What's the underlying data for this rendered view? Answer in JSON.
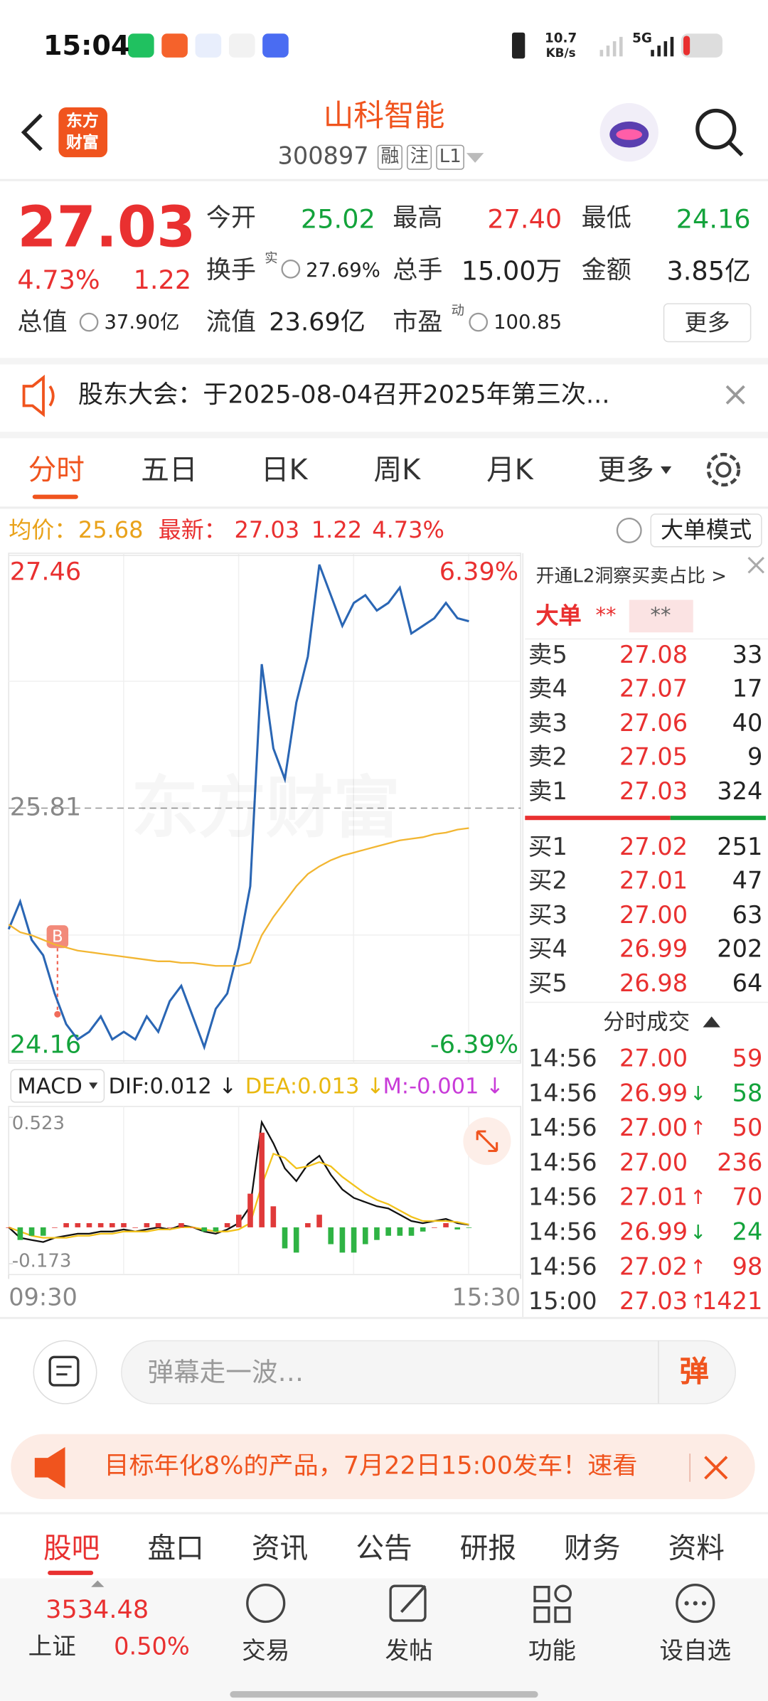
{
  "status_bar": {
    "time": "15:04",
    "speed": "10.7",
    "speed_unit": "KB/s",
    "network": "5G"
  },
  "header": {
    "logo_top": "东方",
    "logo_bottom": "财富",
    "title": "山科智能",
    "code": "300897",
    "tags": [
      "融",
      "注",
      "L1"
    ]
  },
  "quote": {
    "price": "27.03",
    "change_pct": "4.73%",
    "change": "1.22",
    "fields": [
      {
        "label": "今开",
        "value": "25.02",
        "color": "#13a33b"
      },
      {
        "label": "最高",
        "value": "27.40",
        "color": "#e93030"
      },
      {
        "label": "最低",
        "value": "24.16",
        "color": "#13a33b"
      },
      {
        "label": "换手",
        "sup": "实",
        "value": "27.69%",
        "color": "#222222"
      },
      {
        "label": "总手",
        "value": "15.00万",
        "color": "#222222"
      },
      {
        "label": "金额",
        "value": "3.85亿",
        "color": "#222222"
      },
      {
        "label": "总值",
        "value": "37.90亿",
        "color": "#222222"
      },
      {
        "label": "流值",
        "value": "23.69亿",
        "color": "#222222"
      },
      {
        "label": "市盈",
        "sup": "动",
        "value": "100.85",
        "color": "#222222"
      }
    ],
    "more": "更多"
  },
  "notice": {
    "text": "股东大会：于2025-08-04召开2025年第三次..."
  },
  "tabs": {
    "items": [
      "分时",
      "五日",
      "日K",
      "周K",
      "月K",
      "更多"
    ],
    "active": 0
  },
  "summary": {
    "avg_label": "均价：",
    "avg": "25.68",
    "latest_label": "最新：",
    "latest": "27.03",
    "change": "1.22",
    "change_pct": "4.73%",
    "mode": "大单模式"
  },
  "watermark": "东方财富",
  "chart_data": [
    {
      "type": "line",
      "x": [
        0,
        6,
        12,
        18,
        24,
        30,
        36,
        42,
        48,
        54,
        60,
        66,
        72,
        78,
        84,
        90,
        96,
        102,
        108,
        114,
        120,
        126,
        132,
        138,
        144,
        150,
        156,
        162,
        168,
        174,
        180,
        186,
        192,
        198,
        204,
        210,
        216,
        222,
        228,
        234,
        240
      ],
      "xlim": [
        0,
        267
      ],
      "ylim": [
        24.16,
        27.46
      ],
      "yticks": [
        24.16,
        25.81,
        27.46
      ],
      "y2lim": [
        -6.39,
        6.39
      ],
      "y2ticks": [
        {
          "value": -6.39,
          "label": "-6.39%"
        },
        {
          "value": 6.39,
          "label": "6.39%"
        }
      ],
      "series": [
        {
          "color": "#2a66b4",
          "values": [
            25.02,
            25.2,
            24.95,
            24.85,
            24.6,
            24.4,
            24.3,
            24.35,
            24.45,
            24.3,
            24.35,
            24.3,
            24.45,
            24.35,
            24.55,
            24.65,
            24.45,
            24.25,
            24.5,
            24.6,
            24.9,
            25.3,
            26.75,
            26.2,
            26.0,
            26.5,
            26.8,
            27.4,
            27.2,
            27.0,
            27.15,
            27.2,
            27.1,
            27.15,
            27.25,
            26.95,
            27.0,
            27.05,
            27.15,
            27.05,
            27.03
          ]
        },
        {
          "color": "#f2b632",
          "values": [
            25.05,
            25.0,
            24.98,
            24.95,
            24.92,
            24.9,
            24.88,
            24.87,
            24.86,
            24.85,
            24.84,
            24.83,
            24.82,
            24.81,
            24.81,
            24.8,
            24.8,
            24.79,
            24.78,
            24.78,
            24.78,
            24.8,
            24.98,
            25.1,
            25.2,
            25.3,
            25.38,
            25.43,
            25.47,
            25.5,
            25.52,
            25.54,
            25.56,
            25.58,
            25.6,
            25.61,
            25.62,
            25.64,
            25.65,
            25.67,
            25.68
          ]
        }
      ]
    },
    {
      "type": "macd",
      "x": [
        0,
        6,
        12,
        18,
        24,
        30,
        36,
        42,
        48,
        54,
        60,
        66,
        72,
        78,
        84,
        90,
        96,
        102,
        108,
        114,
        120,
        126,
        132,
        138,
        144,
        150,
        156,
        162,
        168,
        174,
        180,
        186,
        192,
        198,
        204,
        210,
        216,
        222,
        228,
        234,
        240
      ],
      "xlim": [
        0,
        267
      ],
      "ylim": [
        -0.173,
        0.523
      ],
      "yticks": [
        -0.173,
        0.523
      ],
      "xticks": [
        {
          "value": 0,
          "label": "09:30"
        },
        {
          "value": 267,
          "label": "15:30"
        }
      ],
      "positive_color": "#e03a3a",
      "negative_color": "#2fb344",
      "series": [
        {
          "type": "line",
          "color": "#111111",
          "values": [
            0.0,
            -0.05,
            -0.06,
            -0.07,
            -0.05,
            -0.04,
            -0.03,
            -0.03,
            -0.02,
            -0.02,
            -0.01,
            -0.02,
            -0.01,
            0.0,
            -0.01,
            0.01,
            0.0,
            -0.02,
            -0.03,
            -0.01,
            0.02,
            0.1,
            0.5,
            0.4,
            0.28,
            0.22,
            0.3,
            0.34,
            0.25,
            0.18,
            0.14,
            0.12,
            0.1,
            0.09,
            0.06,
            0.03,
            0.02,
            0.03,
            0.04,
            0.02,
            0.012
          ]
        },
        {
          "type": "line",
          "color": "#f2c21a",
          "values": [
            0.0,
            -0.02,
            -0.04,
            -0.05,
            -0.05,
            -0.05,
            -0.04,
            -0.04,
            -0.03,
            -0.03,
            -0.02,
            -0.02,
            -0.02,
            -0.01,
            -0.01,
            0.0,
            0.0,
            -0.01,
            -0.02,
            -0.02,
            -0.01,
            0.02,
            0.2,
            0.35,
            0.33,
            0.28,
            0.29,
            0.31,
            0.29,
            0.24,
            0.2,
            0.16,
            0.13,
            0.11,
            0.08,
            0.05,
            0.03,
            0.03,
            0.03,
            0.025,
            0.013
          ]
        },
        {
          "type": "bar",
          "values": [
            0,
            -0.06,
            -0.04,
            -0.04,
            0,
            0.02,
            0.02,
            0.02,
            0.02,
            0.02,
            0.02,
            0,
            0.02,
            0.02,
            0,
            0.02,
            0,
            -0.02,
            -0.02,
            0.02,
            0.06,
            0.16,
            0.45,
            0.1,
            -0.1,
            -0.12,
            0.02,
            0.06,
            -0.08,
            -0.12,
            -0.12,
            -0.08,
            -0.06,
            -0.04,
            -0.04,
            -0.04,
            -0.02,
            0,
            0.02,
            -0.01,
            -0.001
          ]
        }
      ]
    }
  ],
  "macd_header": {
    "indicator": "MACD",
    "dif": "DIF:0.012 ↓",
    "dea": "DEA:0.013 ↓",
    "m": "M:-0.001 ↓"
  },
  "order_book": {
    "promo": "开通L2洞察买卖占比 >",
    "big_order": "大单",
    "big_value": "**",
    "big_box": "**",
    "asks": [
      {
        "label": "卖5",
        "price": "27.08",
        "volume": "33"
      },
      {
        "label": "卖4",
        "price": "27.07",
        "volume": "17"
      },
      {
        "label": "卖3",
        "price": "27.06",
        "volume": "40"
      },
      {
        "label": "卖2",
        "price": "27.05",
        "volume": "9"
      },
      {
        "label": "卖1",
        "price": "27.03",
        "volume": "324"
      }
    ],
    "bids": [
      {
        "label": "买1",
        "price": "27.02",
        "volume": "251"
      },
      {
        "label": "买2",
        "price": "27.01",
        "volume": "47"
      },
      {
        "label": "买3",
        "price": "27.00",
        "volume": "63"
      },
      {
        "label": "买4",
        "price": "26.99",
        "volume": "202"
      },
      {
        "label": "买5",
        "price": "26.98",
        "volume": "64"
      }
    ]
  },
  "trades": {
    "title": "分时成交",
    "rows": [
      {
        "time": "14:56",
        "price": "27.00",
        "volume": "59",
        "color": "#e93030"
      },
      {
        "time": "14:56",
        "price": "26.99",
        "arrow": "↓",
        "volume": "58",
        "color": "#13a33b"
      },
      {
        "time": "14:56",
        "price": "27.00",
        "arrow": "↑",
        "volume": "50",
        "color": "#e93030"
      },
      {
        "time": "14:56",
        "price": "27.00",
        "volume": "236",
        "color": "#e93030"
      },
      {
        "time": "14:56",
        "price": "27.01",
        "arrow": "↑",
        "volume": "70",
        "color": "#e93030"
      },
      {
        "time": "14:56",
        "price": "26.99",
        "arrow": "↓",
        "volume": "24",
        "color": "#13a33b"
      },
      {
        "time": "14:56",
        "price": "27.02",
        "arrow": "↑",
        "volume": "98",
        "color": "#e93030"
      },
      {
        "time": "15:00",
        "price": "27.03",
        "arrow": "↑",
        "volume": "1421",
        "color": "#e93030"
      }
    ]
  },
  "comment": {
    "placeholder": "弹幕走一波…",
    "button": "弹"
  },
  "promo": {
    "text": "目标年化8%的产品，7月22日15:00发车！速看"
  },
  "bottom_tabs": {
    "items": [
      "股吧",
      "盘口",
      "资讯",
      "公告",
      "研报",
      "财务",
      "资料"
    ],
    "active": 0
  },
  "nav": {
    "index_value": "3534.48",
    "index_name": "上证",
    "index_change": "0.50%",
    "items": [
      "交易",
      "发帖",
      "功能",
      "设自选"
    ]
  }
}
